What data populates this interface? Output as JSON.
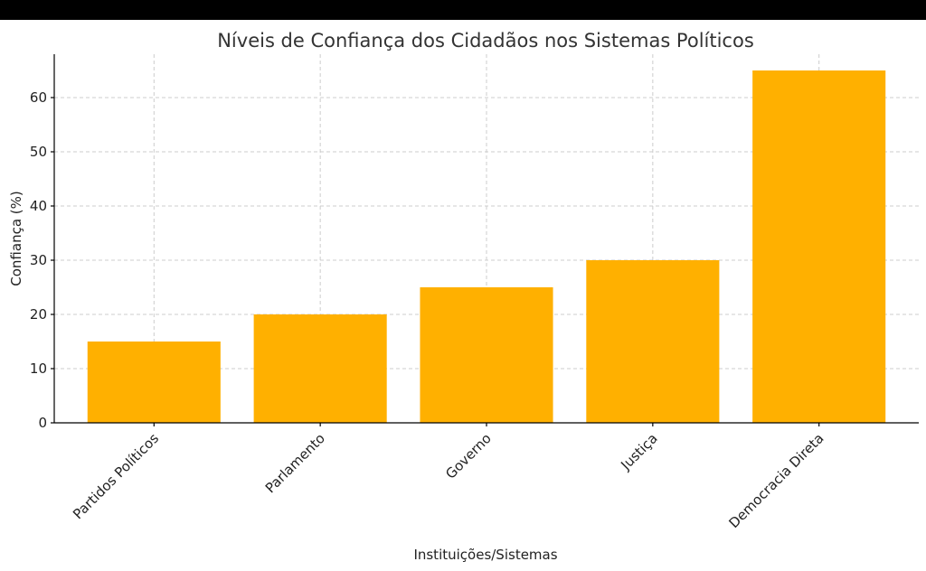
{
  "chart_data": {
    "type": "bar",
    "title": "Níveis de Confiança dos Cidadãos nos Sistemas Políticos",
    "xlabel": "Instituições/Sistemas",
    "ylabel": "Confiança (%)",
    "categories": [
      "Partidos Políticos",
      "Parlamento",
      "Governo",
      "Justiça",
      "Democracia Direta"
    ],
    "values": [
      15,
      20,
      25,
      30,
      65
    ],
    "ylim": [
      0,
      68
    ],
    "yticks": [
      0,
      10,
      20,
      30,
      40,
      50,
      60
    ],
    "grid": true,
    "bar_color": "#ffb000"
  }
}
